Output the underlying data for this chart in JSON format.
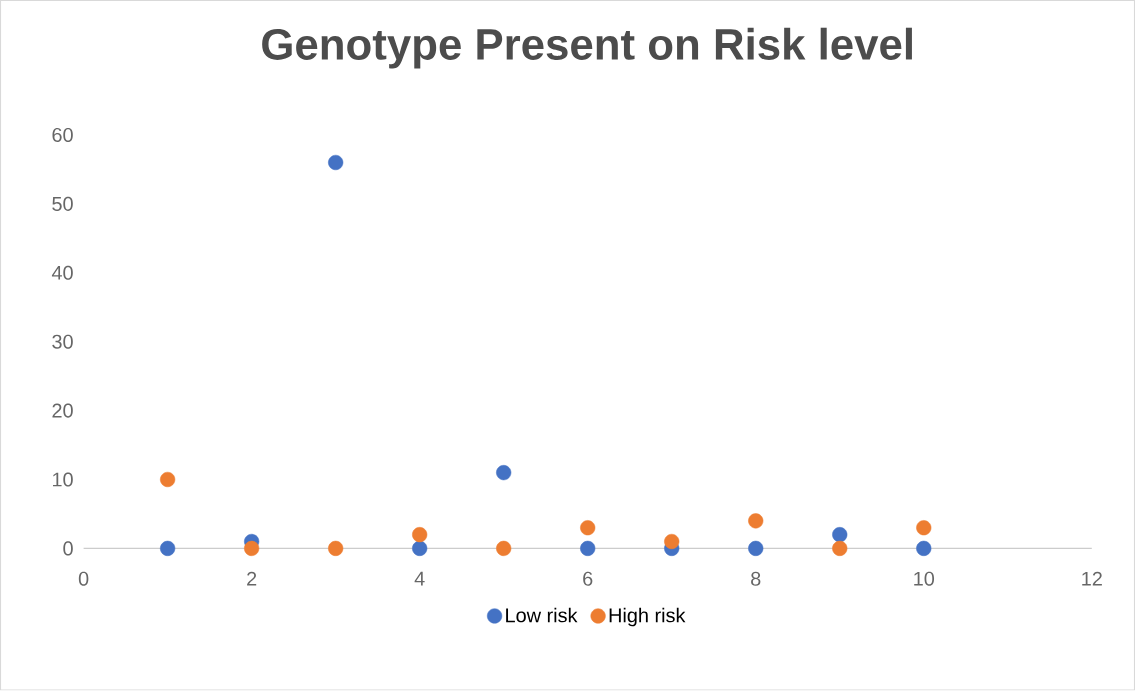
{
  "chart_data": {
    "type": "scatter",
    "title": "Genotype Present on Risk level",
    "x": [
      1,
      2,
      3,
      4,
      5,
      6,
      7,
      8,
      9,
      10
    ],
    "series": [
      {
        "name": "Low risk",
        "color": "#4472c4",
        "values": [
          0,
          1,
          56,
          0,
          11,
          0,
          0,
          0,
          2,
          0
        ]
      },
      {
        "name": "High risk",
        "color": "#ed7d31",
        "values": [
          10,
          0,
          0,
          2,
          0,
          3,
          1,
          4,
          0,
          3
        ]
      }
    ],
    "xlim": [
      0,
      12
    ],
    "xticks": [
      0,
      2,
      4,
      6,
      8,
      10,
      12
    ],
    "ylim": [
      0,
      60
    ],
    "yticks": [
      0,
      10,
      20,
      30,
      40,
      50,
      60
    ],
    "grid": false,
    "legend": "bottom",
    "marker": "circle"
  }
}
